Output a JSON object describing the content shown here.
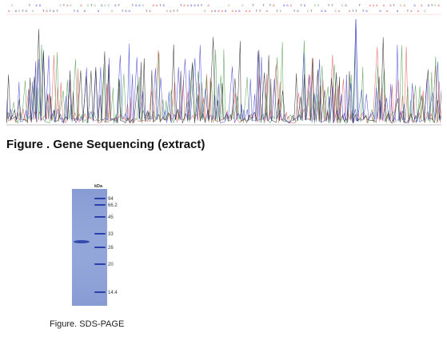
{
  "gene_sequencing": {
    "caption": "Figure . Gene Sequencing (extract)",
    "trace_colors": [
      "#e05050",
      "#4a9a4a",
      "#3b3bd0",
      "#222222"
    ]
  },
  "sds_page": {
    "caption": "Figure. SDS-PAGE",
    "unit_label": "kDa",
    "ladder": [
      {
        "label": "94"
      },
      {
        "label": "66.2"
      },
      {
        "label": "45"
      },
      {
        "label": "33"
      },
      {
        "label": "26"
      },
      {
        "label": "20"
      },
      {
        "label": "14.4"
      }
    ],
    "gel_color": "#8fa3d8",
    "band_color": "#2a3fa8"
  }
}
